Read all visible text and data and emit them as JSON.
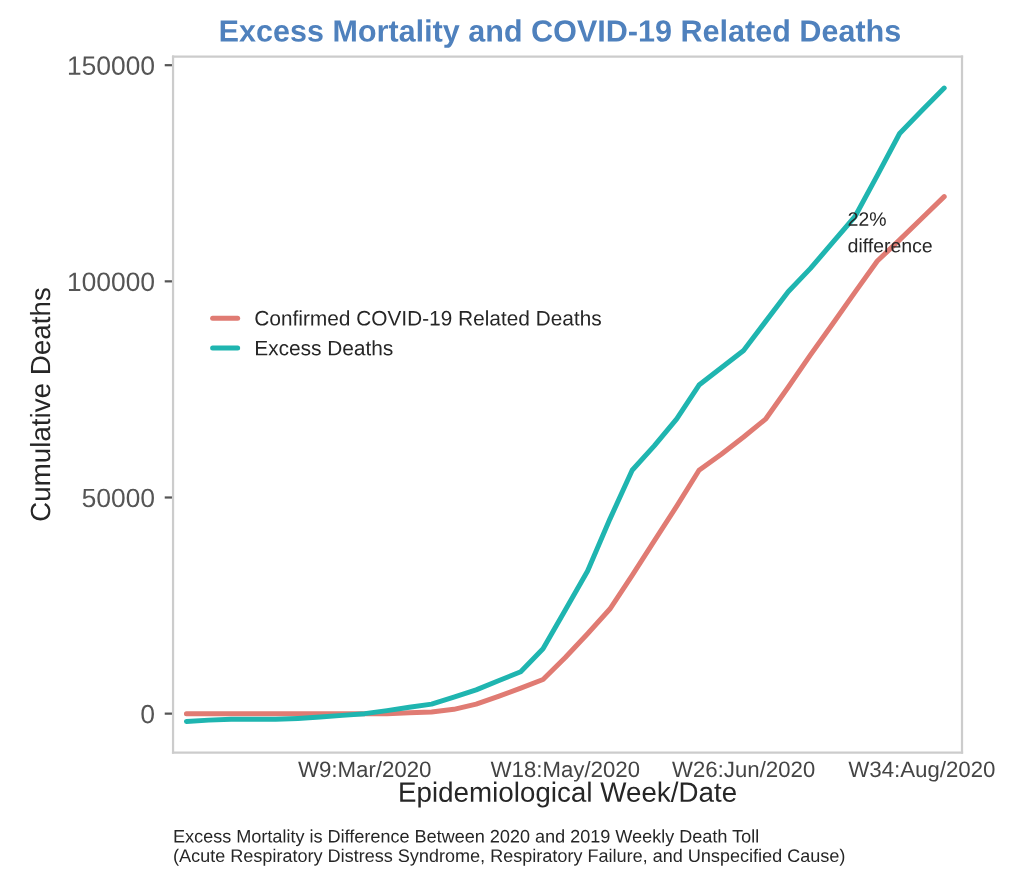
{
  "chart_data": {
    "type": "line",
    "title": "Excess Mortality and COVID-19 Related Deaths",
    "xlabel": "Epidemiological Week/Date",
    "ylabel": "Cumulative Deaths",
    "categories": [
      null,
      null,
      null,
      null,
      null,
      null,
      null,
      null,
      "W9:Mar/2020",
      null,
      null,
      null,
      null,
      null,
      null,
      null,
      null,
      "W18:May/2020",
      null,
      null,
      null,
      null,
      null,
      null,
      null,
      "W26:Jun/2020",
      null,
      null,
      null,
      null,
      null,
      null,
      null,
      "W34:Aug/2020",
      null
    ],
    "series": [
      {
        "name": "Confirmed COVID-19 Related Deaths",
        "color": "#e07b73",
        "values": [
          0,
          0,
          0,
          0,
          0,
          0,
          0,
          0,
          0,
          0,
          200,
          400,
          1000,
          2200,
          4000,
          5900,
          7900,
          13000,
          18500,
          24200,
          32000,
          40000,
          48000,
          56300,
          60000,
          64000,
          68200,
          75500,
          83000,
          90200,
          97500,
          104700,
          109600,
          114600,
          119600
        ]
      },
      {
        "name": "Excess Deaths",
        "color": "#1fb5b0",
        "values": [
          -1800,
          -1500,
          -1300,
          -1300,
          -1300,
          -1100,
          -800,
          -400,
          0,
          700,
          1500,
          2200,
          3800,
          5500,
          7600,
          9700,
          15000,
          24000,
          33000,
          45000,
          56300,
          62000,
          68200,
          76000,
          80000,
          84000,
          90800,
          97600,
          103000,
          109000,
          115000,
          124500,
          134200,
          139500,
          144700
        ]
      }
    ],
    "ylim": [
      -9000,
      152000
    ],
    "yticks": [
      0,
      50000,
      100000,
      150000
    ],
    "grid": false,
    "legend": "center left",
    "marker": "none",
    "line_style": "solid",
    "annotations": [
      "22%\ndifference",
      "Excess Mortality is Difference Between 2020 and 2019 Weekly Death Toll\n(Acute Respiratory Distress Syndrome, Respiratory Failure, and Unspecified Cause)"
    ]
  }
}
